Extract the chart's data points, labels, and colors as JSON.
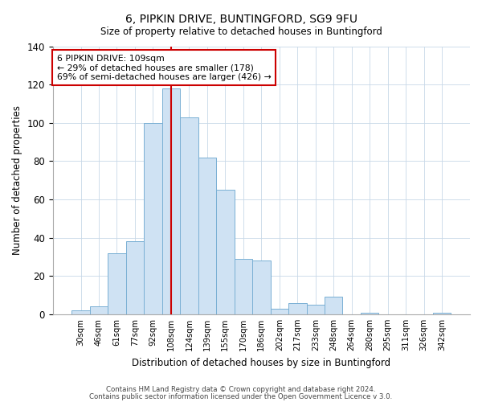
{
  "title_line1": "6, PIPKIN DRIVE, BUNTINGFORD, SG9 9FU",
  "title_line2": "Size of property relative to detached houses in Buntingford",
  "xlabel": "Distribution of detached houses by size in Buntingford",
  "ylabel": "Number of detached properties",
  "bar_labels": [
    "30sqm",
    "46sqm",
    "61sqm",
    "77sqm",
    "92sqm",
    "108sqm",
    "124sqm",
    "139sqm",
    "155sqm",
    "170sqm",
    "186sqm",
    "202sqm",
    "217sqm",
    "233sqm",
    "248sqm",
    "264sqm",
    "280sqm",
    "295sqm",
    "311sqm",
    "326sqm",
    "342sqm"
  ],
  "bar_values": [
    2,
    4,
    32,
    38,
    100,
    118,
    103,
    82,
    65,
    29,
    28,
    3,
    6,
    5,
    9,
    0,
    1,
    0,
    0,
    0,
    1
  ],
  "bar_color": "#cfe2f3",
  "bar_edge_color": "#7ab0d4",
  "vline_color": "#cc0000",
  "ylim": [
    0,
    140
  ],
  "annotation_title": "6 PIPKIN DRIVE: 109sqm",
  "annotation_line1": "← 29% of detached houses are smaller (178)",
  "annotation_line2": "69% of semi-detached houses are larger (426) →",
  "annotation_box_color": "#ffffff",
  "annotation_box_edge": "#cc0000",
  "footer_line1": "Contains HM Land Registry data © Crown copyright and database right 2024.",
  "footer_line2": "Contains public sector information licensed under the Open Government Licence v 3.0."
}
